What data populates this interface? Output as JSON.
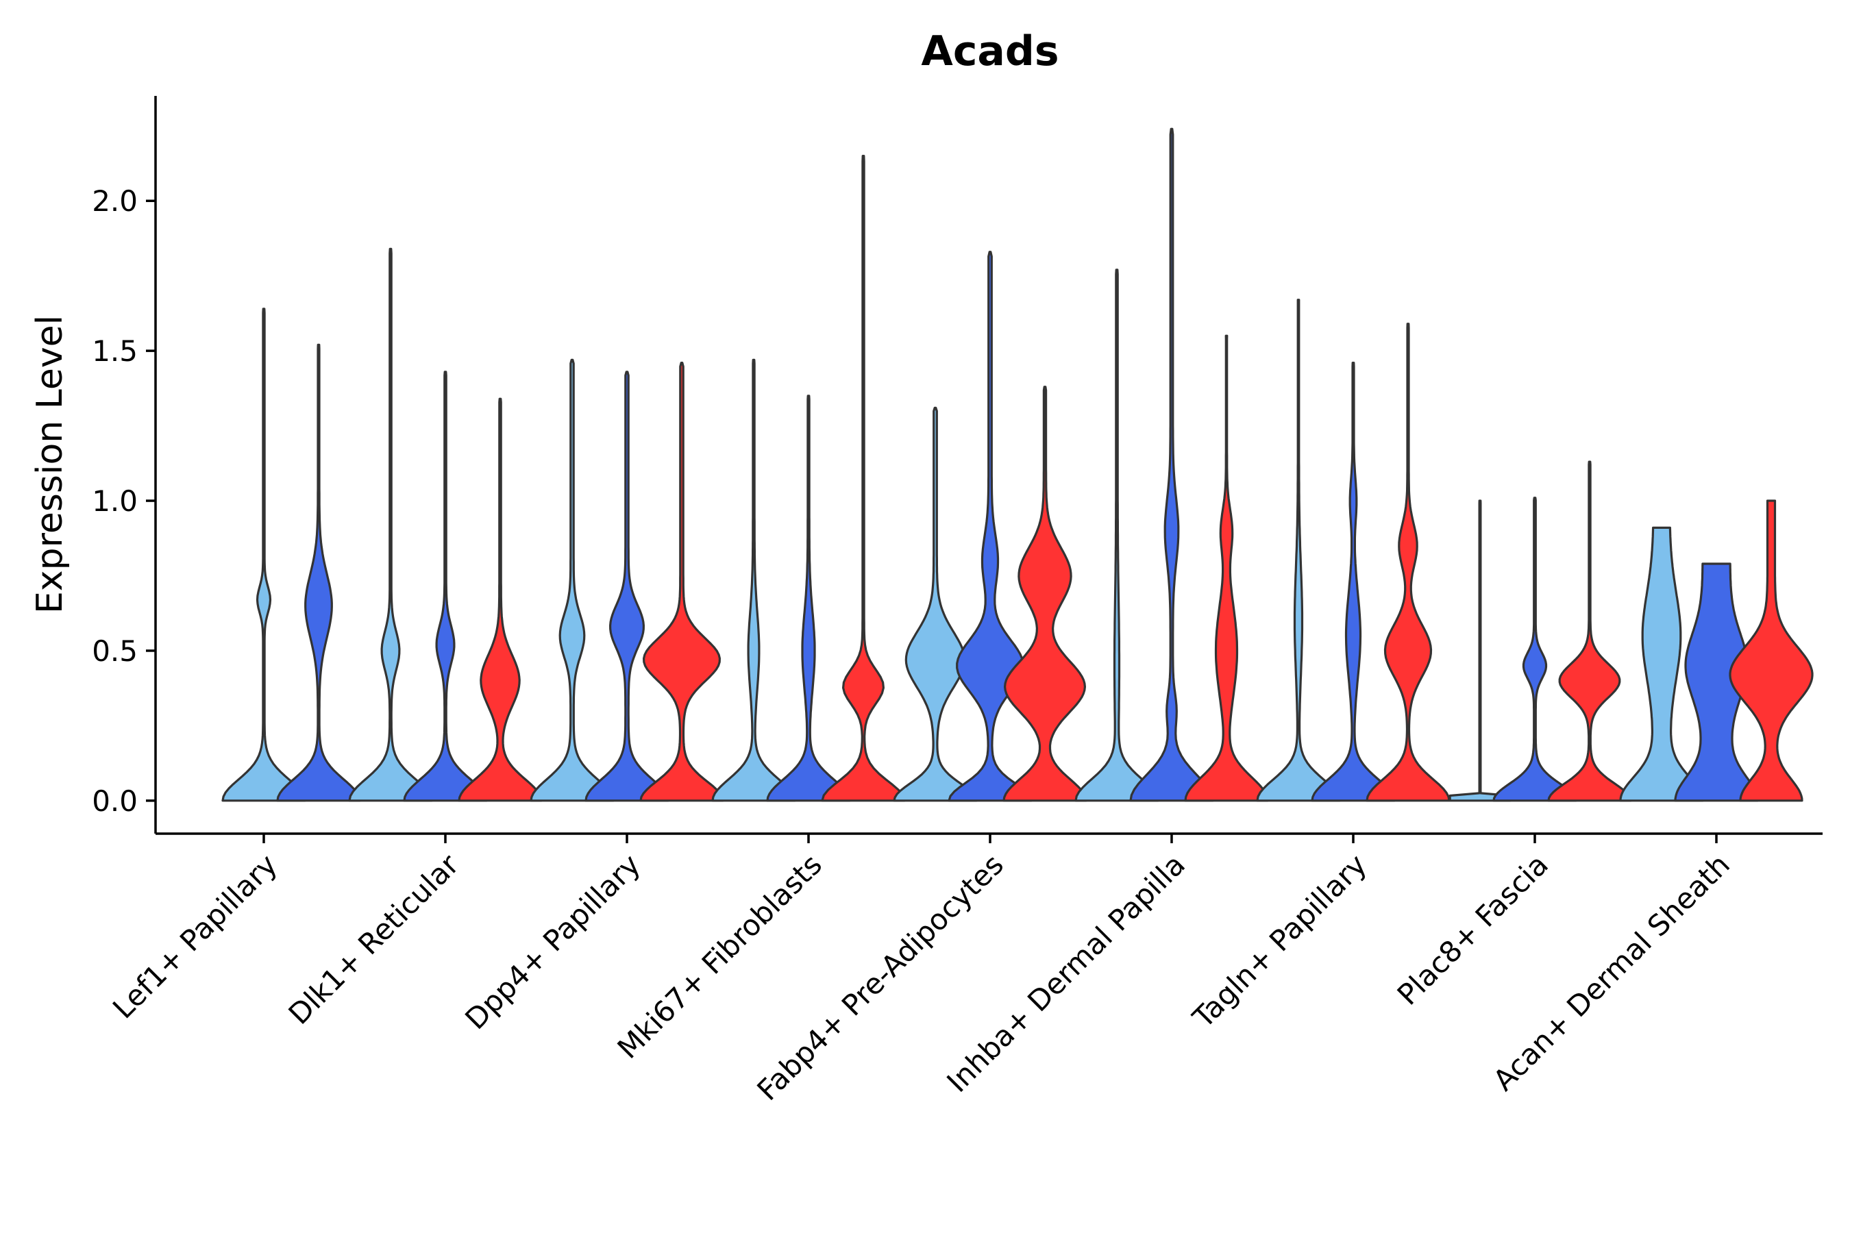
{
  "chart_data": {
    "type": "violin",
    "title": "Acads",
    "ylabel": "Expression Level",
    "xlabel": "",
    "ylim": [
      -0.11,
      2.35
    ],
    "yticks": [
      0.0,
      0.5,
      1.0,
      1.5,
      2.0
    ],
    "ytick_labels": [
      "0.0",
      "0.5",
      "1.0",
      "1.5",
      "2.0"
    ],
    "categories": [
      "Lef1+ Papillary",
      "Dlk1+ Reticular",
      "Dpp4+ Papillary",
      "Mki67+ Fibroblasts",
      "Fabp4+ Pre-Adipocytes",
      "Inhba+ Dermal Papilla",
      "Tagln+ Papillary",
      "Plac8+ Fascia",
      "Acan+ Dermal Sheath"
    ],
    "series_colors": {
      "light": "#7EC0ED",
      "blue": "#4169E8",
      "red": "#FF3333"
    },
    "violins": [
      {
        "cat": 0,
        "slot": 0,
        "color": "light",
        "max": 1.64,
        "base": 0.56,
        "baseSpread": 0.1,
        "modes": [
          [
            0.67,
            0.06,
            0.08
          ]
        ],
        "tail": 0.01
      },
      {
        "cat": 0,
        "slot": 1,
        "color": "blue",
        "max": 1.52,
        "base": 0.58,
        "baseSpread": 0.1,
        "modes": [
          [
            0.65,
            0.15,
            0.18
          ]
        ],
        "tail": 0.01
      },
      {
        "cat": 1,
        "slot": -1,
        "color": "light",
        "max": 1.84,
        "base": 0.5,
        "baseSpread": 0.1,
        "modes": [
          [
            0.5,
            0.09,
            0.1
          ]
        ],
        "tail": 0.01
      },
      {
        "cat": 1,
        "slot": 0,
        "color": "blue",
        "max": 1.43,
        "base": 0.5,
        "baseSpread": 0.1,
        "modes": [
          [
            0.52,
            0.09,
            0.1
          ]
        ],
        "tail": 0.01
      },
      {
        "cat": 1,
        "slot": 1,
        "color": "red",
        "max": 1.34,
        "base": 0.48,
        "baseSpread": 0.1,
        "modes": [
          [
            0.4,
            0.12,
            0.22
          ]
        ],
        "tail": 0.01
      },
      {
        "cat": 2,
        "slot": -1,
        "color": "light",
        "max": 1.47,
        "base": 0.52,
        "baseSpread": 0.1,
        "modes": [
          [
            0.55,
            0.1,
            0.14
          ]
        ],
        "tail": 0.02
      },
      {
        "cat": 2,
        "slot": 0,
        "color": "blue",
        "max": 1.43,
        "base": 0.52,
        "baseSpread": 0.1,
        "modes": [
          [
            0.58,
            0.1,
            0.2
          ]
        ],
        "tail": 0.02
      },
      {
        "cat": 2,
        "slot": 1,
        "color": "red",
        "max": 1.46,
        "base": 0.52,
        "baseSpread": 0.09,
        "modes": [
          [
            0.47,
            0.1,
            0.48
          ]
        ],
        "tail": 0.02
      },
      {
        "cat": 3,
        "slot": -1,
        "color": "light",
        "max": 1.47,
        "base": 0.52,
        "baseSpread": 0.1,
        "modes": [
          [
            0.5,
            0.18,
            0.06
          ]
        ],
        "tail": 0.01
      },
      {
        "cat": 3,
        "slot": 0,
        "color": "blue",
        "max": 1.35,
        "base": 0.52,
        "baseSpread": 0.1,
        "modes": [
          [
            0.5,
            0.18,
            0.07
          ]
        ],
        "tail": 0.01
      },
      {
        "cat": 3,
        "slot": 1,
        "color": "red",
        "max": 2.15,
        "base": 0.52,
        "baseSpread": 0.09,
        "modes": [
          [
            0.38,
            0.08,
            0.25
          ]
        ],
        "tail": 0.01
      },
      {
        "cat": 4,
        "slot": -1,
        "color": "light",
        "max": 1.31,
        "base": 0.5,
        "baseSpread": 0.08,
        "modes": [
          [
            0.47,
            0.13,
            0.35
          ]
        ],
        "tail": 0.02
      },
      {
        "cat": 4,
        "slot": 0,
        "color": "blue",
        "max": 1.83,
        "base": 0.5,
        "baseSpread": 0.08,
        "modes": [
          [
            0.45,
            0.12,
            0.4
          ],
          [
            0.8,
            0.12,
            0.08
          ]
        ],
        "tail": 0.02
      },
      {
        "cat": 4,
        "slot": 1,
        "color": "red",
        "max": 1.38,
        "base": 0.72,
        "baseSpread": 0.1,
        "modes": [
          [
            0.38,
            0.12,
            0.7
          ],
          [
            0.75,
            0.13,
            0.45
          ]
        ],
        "tail": 0.02
      },
      {
        "cat": 5,
        "slot": -1,
        "color": "light",
        "max": 1.77,
        "base": 0.5,
        "baseSpread": 0.1,
        "modes": [
          [
            0.45,
            0.3,
            0.02
          ]
        ],
        "tail": 0.01
      },
      {
        "cat": 5,
        "slot": 0,
        "color": "blue",
        "max": 2.24,
        "base": 0.65,
        "baseSpread": 0.12,
        "modes": [
          [
            0.3,
            0.08,
            0.06
          ],
          [
            0.9,
            0.15,
            0.09
          ]
        ],
        "tail": 0.02
      },
      {
        "cat": 5,
        "slot": 1,
        "color": "red",
        "max": 1.55,
        "base": 0.8,
        "baseSpread": 0.11,
        "modes": [
          [
            0.5,
            0.22,
            0.2
          ],
          [
            0.9,
            0.1,
            0.1
          ]
        ],
        "tail": 0.01
      },
      {
        "cat": 6,
        "slot": -1,
        "color": "light",
        "max": 1.67,
        "base": 0.75,
        "baseSpread": 0.1,
        "modes": [
          [
            0.6,
            0.25,
            0.06
          ]
        ],
        "tail": 0.01
      },
      {
        "cat": 6,
        "slot": 0,
        "color": "blue",
        "max": 1.46,
        "base": 0.62,
        "baseSpread": 0.1,
        "modes": [
          [
            0.55,
            0.2,
            0.1
          ],
          [
            1.0,
            0.1,
            0.04
          ]
        ],
        "tail": 0.01
      },
      {
        "cat": 6,
        "slot": 1,
        "color": "red",
        "max": 1.59,
        "base": 0.58,
        "baseSpread": 0.1,
        "modes": [
          [
            0.5,
            0.12,
            0.32
          ],
          [
            0.85,
            0.1,
            0.12
          ]
        ],
        "tail": 0.01
      },
      {
        "cat": 7,
        "slot": -1,
        "color": "light",
        "max": 1.0,
        "base": 0.0,
        "baseSpread": 0.01,
        "modes": [],
        "tail": 0.015,
        "flat": true
      },
      {
        "cat": 7,
        "slot": 0,
        "color": "blue",
        "max": 1.01,
        "base": 0.46,
        "baseSpread": 0.08,
        "modes": [
          [
            0.45,
            0.06,
            0.12
          ]
        ],
        "tail": 0.01
      },
      {
        "cat": 7,
        "slot": 1,
        "color": "red",
        "max": 1.13,
        "base": 0.55,
        "baseSpread": 0.08,
        "modes": [
          [
            0.4,
            0.08,
            0.4
          ]
        ],
        "tail": 0.01
      },
      {
        "cat": 8,
        "slot": -1,
        "color": "light",
        "max": 0.91,
        "base": 0.9,
        "baseSpread": 0.11,
        "modes": [
          [
            0.55,
            0.2,
            0.3
          ]
        ],
        "tail": 0.22,
        "cap": true
      },
      {
        "cat": 8,
        "slot": 0,
        "color": "blue",
        "max": 0.79,
        "base": 0.8,
        "baseSpread": 0.11,
        "modes": [
          [
            0.45,
            0.15,
            0.5
          ]
        ],
        "tail": 0.4,
        "cap": true
      },
      {
        "cat": 8,
        "slot": 1,
        "color": "red",
        "max": 1.0,
        "base": 0.58,
        "baseSpread": 0.1,
        "modes": [
          [
            0.42,
            0.13,
            0.8
          ]
        ],
        "tail": 0.08,
        "cap": true
      }
    ]
  }
}
